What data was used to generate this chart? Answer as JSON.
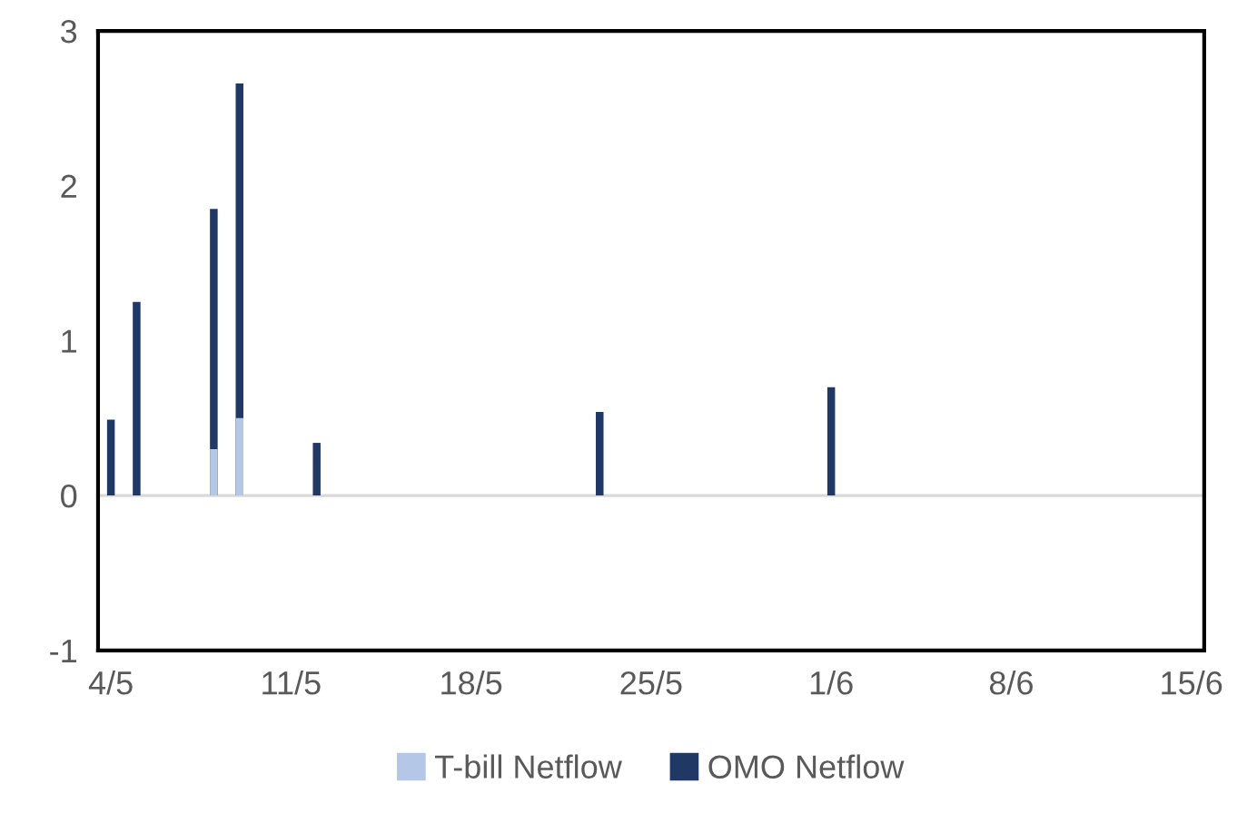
{
  "chart_data": {
    "type": "bar",
    "categories": [
      "4/5",
      null,
      null,
      null,
      null,
      null,
      null,
      "11/5",
      null,
      null,
      null,
      null,
      null,
      null,
      "18/5",
      null,
      null,
      null,
      null,
      null,
      null,
      "25/5",
      null,
      null,
      null,
      null,
      null,
      null,
      "1/6",
      null,
      null,
      null,
      null,
      null,
      null,
      "8/6",
      null,
      null,
      null,
      null,
      null,
      null,
      "15/6"
    ],
    "series": [
      {
        "name": "T-bill Netflow",
        "color": "#b4c7e7",
        "values": [
          null,
          null,
          null,
          null,
          0.3,
          0.5,
          null,
          null,
          null,
          null,
          null,
          null,
          null,
          null,
          null,
          null,
          null,
          null,
          null,
          null,
          null,
          null,
          null,
          null,
          null,
          null,
          null,
          null,
          null,
          null,
          null,
          null,
          null,
          null,
          null,
          null,
          null,
          null,
          null,
          null,
          null,
          null,
          null
        ]
      },
      {
        "name": "OMO Netflow",
        "color": "#203864",
        "values": [
          0.49,
          1.25,
          null,
          null,
          1.85,
          2.66,
          null,
          null,
          0.34,
          null,
          null,
          null,
          null,
          null,
          null,
          null,
          null,
          null,
          null,
          0.54,
          null,
          null,
          null,
          null,
          null,
          null,
          null,
          null,
          0.7,
          null,
          null,
          null,
          null,
          null,
          null,
          null,
          null,
          null,
          null,
          null,
          null,
          null,
          null
        ]
      }
    ],
    "ylim": [
      -1,
      3
    ],
    "yticks": [
      -1,
      0,
      1,
      2,
      3
    ],
    "ref_lines": [
      {
        "axis": "y",
        "value": 0,
        "color": "#d9d9d9"
      }
    ],
    "grid": false,
    "legend": "bottom"
  }
}
